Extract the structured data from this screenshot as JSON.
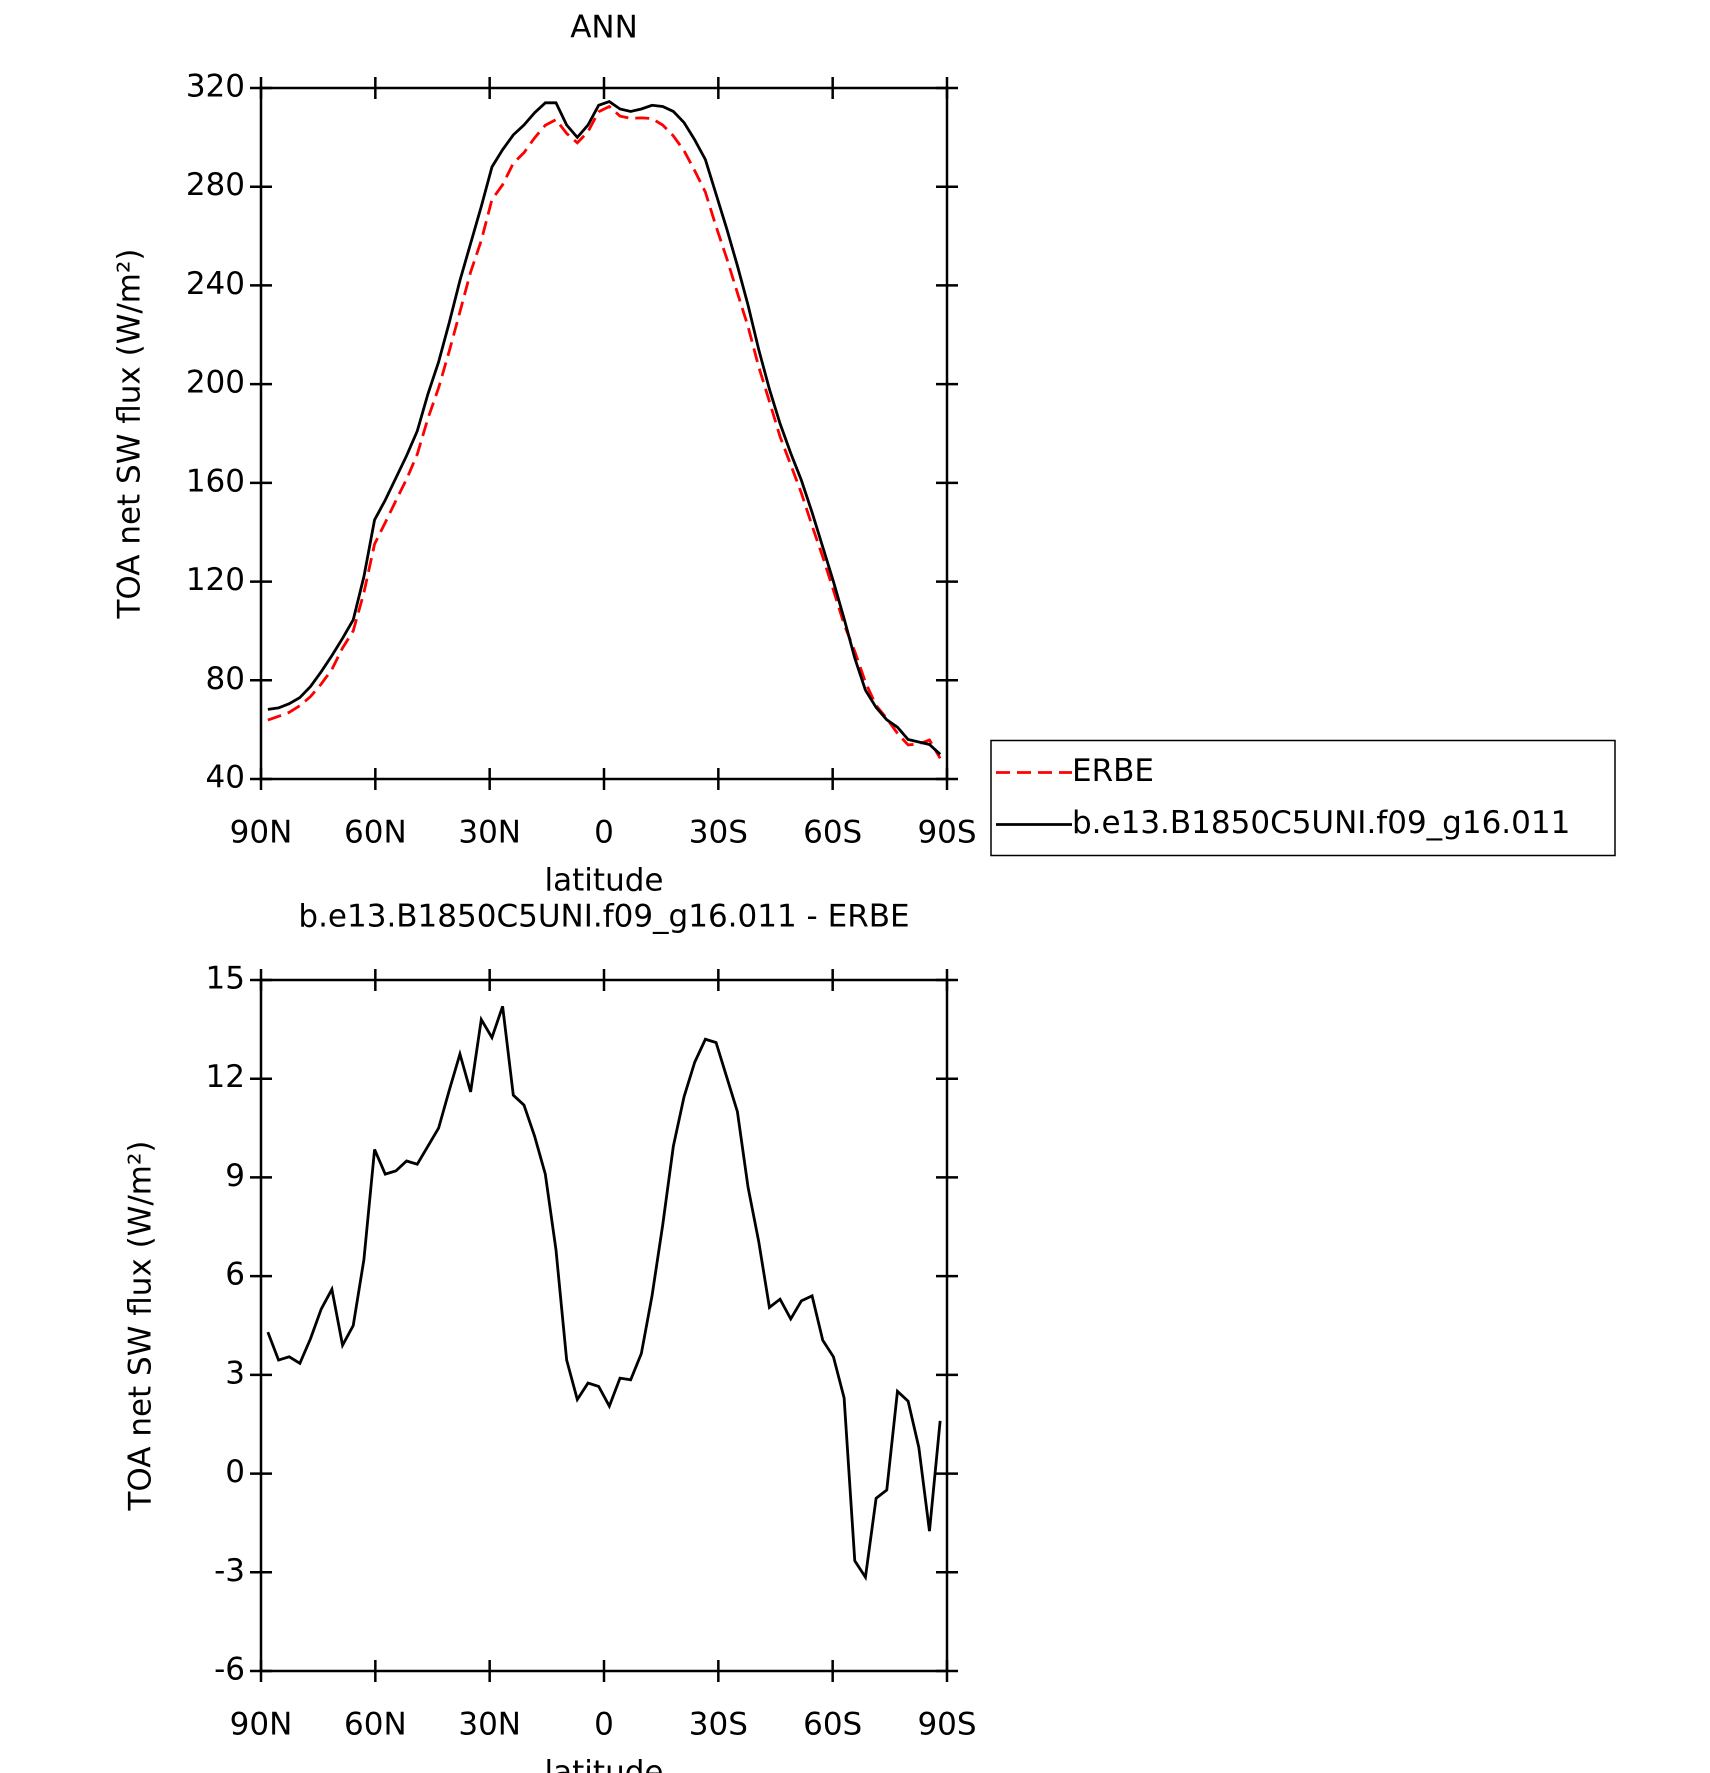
{
  "chart_data": [
    {
      "type": "line",
      "title": "ANN",
      "xlabel": "latitude",
      "ylabel": "TOA net SW flux (W/m²)",
      "x": [
        88.2,
        85.4,
        82.6,
        79.8,
        77,
        74.2,
        71.4,
        68.6,
        65.8,
        63,
        60.2,
        57.4,
        54.6,
        51.8,
        49,
        46.2,
        43.4,
        40.6,
        37.8,
        35,
        32.2,
        29.4,
        26.6,
        23.8,
        21,
        18.2,
        15.4,
        12.6,
        9.8,
        7,
        4.2,
        1.4,
        -1.4,
        -4.2,
        -7,
        -9.8,
        -12.6,
        -15.4,
        -18.2,
        -21,
        -23.8,
        -26.6,
        -29.4,
        -32.2,
        -35,
        -37.8,
        -40.6,
        -43.4,
        -46.2,
        -49,
        -51.8,
        -54.6,
        -57.4,
        -60.2,
        -63,
        -65.8,
        -68.6,
        -71.4,
        -74.2,
        -77,
        -79.8,
        -82.6,
        -85.4,
        -88.2
      ],
      "series": [
        {
          "name": "ERBE",
          "color": "#ff0000",
          "linestyle": "dashed",
          "values": [
            63.9,
            65.4,
            67.0,
            69.7,
            73.4,
            78.5,
            84.4,
            93.1,
            100.0,
            115.5,
            135.2,
            143.9,
            152.8,
            161.5,
            171.6,
            186.1,
            198.5,
            213.4,
            229.3,
            245.4,
            258.2,
            274.8,
            280.8,
            289.5,
            293.8,
            299.8,
            304.9,
            307.2,
            301.6,
            297.8,
            302.3,
            310.4,
            312.5,
            308.6,
            307.7,
            307.9,
            307.6,
            305,
            300.6,
            294.6,
            286.5,
            277.8,
            263.9,
            251,
            237,
            223.3,
            207,
            193,
            178.7,
            167.3,
            155.8,
            142.6,
            130,
            116.5,
            102.7,
            91.7,
            79.2,
            69.8,
            64.5,
            58.5,
            53.8,
            54.2,
            55.8,
            48.4
          ]
        },
        {
          "name": "b.e13.B1850C5UNI.f09_g16.011",
          "color": "#000000",
          "linestyle": "solid",
          "values": [
            68.2,
            68.8,
            70.5,
            73,
            77.5,
            83.5,
            90,
            97,
            104.5,
            122,
            145,
            153,
            162,
            171,
            181,
            196,
            209,
            225,
            242,
            257,
            272,
            288,
            295,
            301,
            305,
            310,
            314,
            314,
            305,
            300,
            305,
            313,
            314.5,
            311.5,
            310.5,
            311.5,
            313,
            312.5,
            310.5,
            306,
            299,
            291,
            277,
            263,
            248,
            232,
            214,
            198,
            184,
            172,
            161,
            148,
            134,
            120,
            105,
            89,
            76,
            69,
            64,
            61,
            56,
            55,
            54,
            50
          ]
        }
      ],
      "xlim": [
        90,
        -90
      ],
      "xticks": [
        {
          "value": 90,
          "label": "90N"
        },
        {
          "value": 60,
          "label": "60N"
        },
        {
          "value": 30,
          "label": "30N"
        },
        0,
        {
          "value": -30,
          "label": "30S"
        },
        {
          "value": -60,
          "label": "60S"
        },
        {
          "value": -90,
          "label": "90S"
        }
      ],
      "ylim": [
        40,
        320
      ],
      "yticks": [
        40,
        80,
        120,
        160,
        200,
        240,
        280,
        320
      ],
      "legend": "right"
    },
    {
      "type": "line",
      "title": "b.e13.B1850C5UNI.f09_g16.011 - ERBE",
      "xlabel": "latitude",
      "ylabel": "TOA net SW flux (W/m²)",
      "x": [
        88.2,
        85.4,
        82.6,
        79.8,
        77,
        74.2,
        71.4,
        68.6,
        65.8,
        63,
        60.2,
        57.4,
        54.6,
        51.8,
        49,
        46.2,
        43.4,
        40.6,
        37.8,
        35,
        32.2,
        29.4,
        26.6,
        23.8,
        21,
        18.2,
        15.4,
        12.6,
        9.8,
        7,
        4.2,
        1.4,
        -1.4,
        -4.2,
        -7,
        -9.8,
        -12.6,
        -15.4,
        -18.2,
        -21,
        -23.8,
        -26.6,
        -29.4,
        -32.2,
        -35,
        -37.8,
        -40.6,
        -43.4,
        -46.2,
        -49,
        -51.8,
        -54.6,
        -57.4,
        -60.2,
        -63,
        -65.8,
        -68.6,
        -71.4,
        -74.2,
        -77,
        -79.8,
        -82.6,
        -85.4,
        -88.2
      ],
      "series": [
        {
          "color": "#000000",
          "linestyle": "solid",
          "values": [
            4.3,
            3.45,
            3.55,
            3.35,
            4.1,
            5.0,
            5.6,
            3.9,
            4.5,
            6.5,
            9.85,
            9.1,
            9.2,
            9.5,
            9.4,
            9.95,
            10.5,
            11.65,
            12.75,
            11.6,
            13.8,
            13.25,
            14.2,
            11.5,
            11.2,
            10.25,
            9.1,
            6.8,
            3.45,
            2.25,
            2.75,
            2.65,
            2.05,
            2.9,
            2.85,
            3.65,
            5.4,
            7.55,
            9.95,
            11.45,
            12.5,
            13.2,
            13.1,
            12.05,
            11.0,
            8.7,
            7.05,
            5.05,
            5.3,
            4.7,
            5.25,
            5.4,
            4.05,
            3.55,
            2.3,
            -2.65,
            -3.15,
            -0.75,
            -0.5,
            2.5,
            2.2,
            0.8,
            -1.75,
            1.6
          ]
        }
      ],
      "xlim": [
        90,
        -90
      ],
      "xticks": [
        {
          "value": 90,
          "label": "90N"
        },
        {
          "value": 60,
          "label": "60N"
        },
        {
          "value": 30,
          "label": "30N"
        },
        0,
        {
          "value": -30,
          "label": "30S"
        },
        {
          "value": -60,
          "label": "60S"
        },
        {
          "value": -90,
          "label": "90S"
        }
      ],
      "ylim": [
        -6,
        15
      ],
      "yticks": [
        -6,
        -3,
        0,
        3,
        6,
        9,
        12,
        15
      ]
    }
  ]
}
